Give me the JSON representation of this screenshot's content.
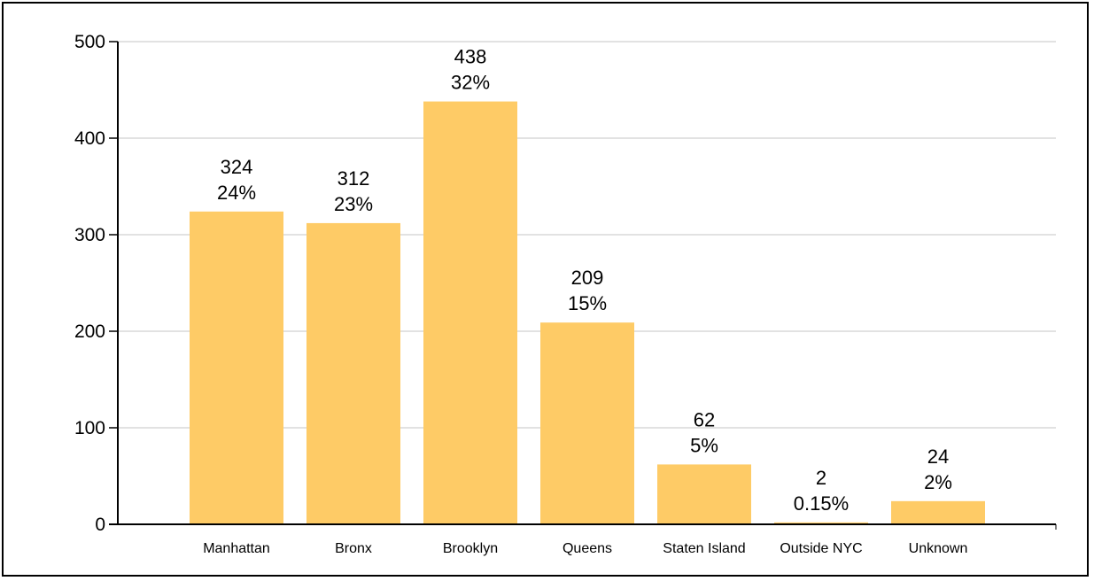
{
  "chart_data": {
    "type": "bar",
    "title": "",
    "xlabel": "",
    "ylabel": "",
    "categories": [
      "Manhattan",
      "Bronx",
      "Brooklyn",
      "Queens",
      "Staten Island",
      "Outside NYC",
      "Unknown"
    ],
    "values": [
      324,
      312,
      438,
      209,
      62,
      2,
      24
    ],
    "percent_labels": [
      "24%",
      "23%",
      "32%",
      "15%",
      "5%",
      "0.15%",
      "2%"
    ],
    "ylim": [
      0,
      500
    ],
    "yticks": [
      0,
      100,
      200,
      300,
      400,
      500
    ],
    "grid": true,
    "legend": "none",
    "colors": {
      "bar": "#FECB66",
      "grid": "#D9D9D9",
      "axis": "#000000"
    }
  }
}
